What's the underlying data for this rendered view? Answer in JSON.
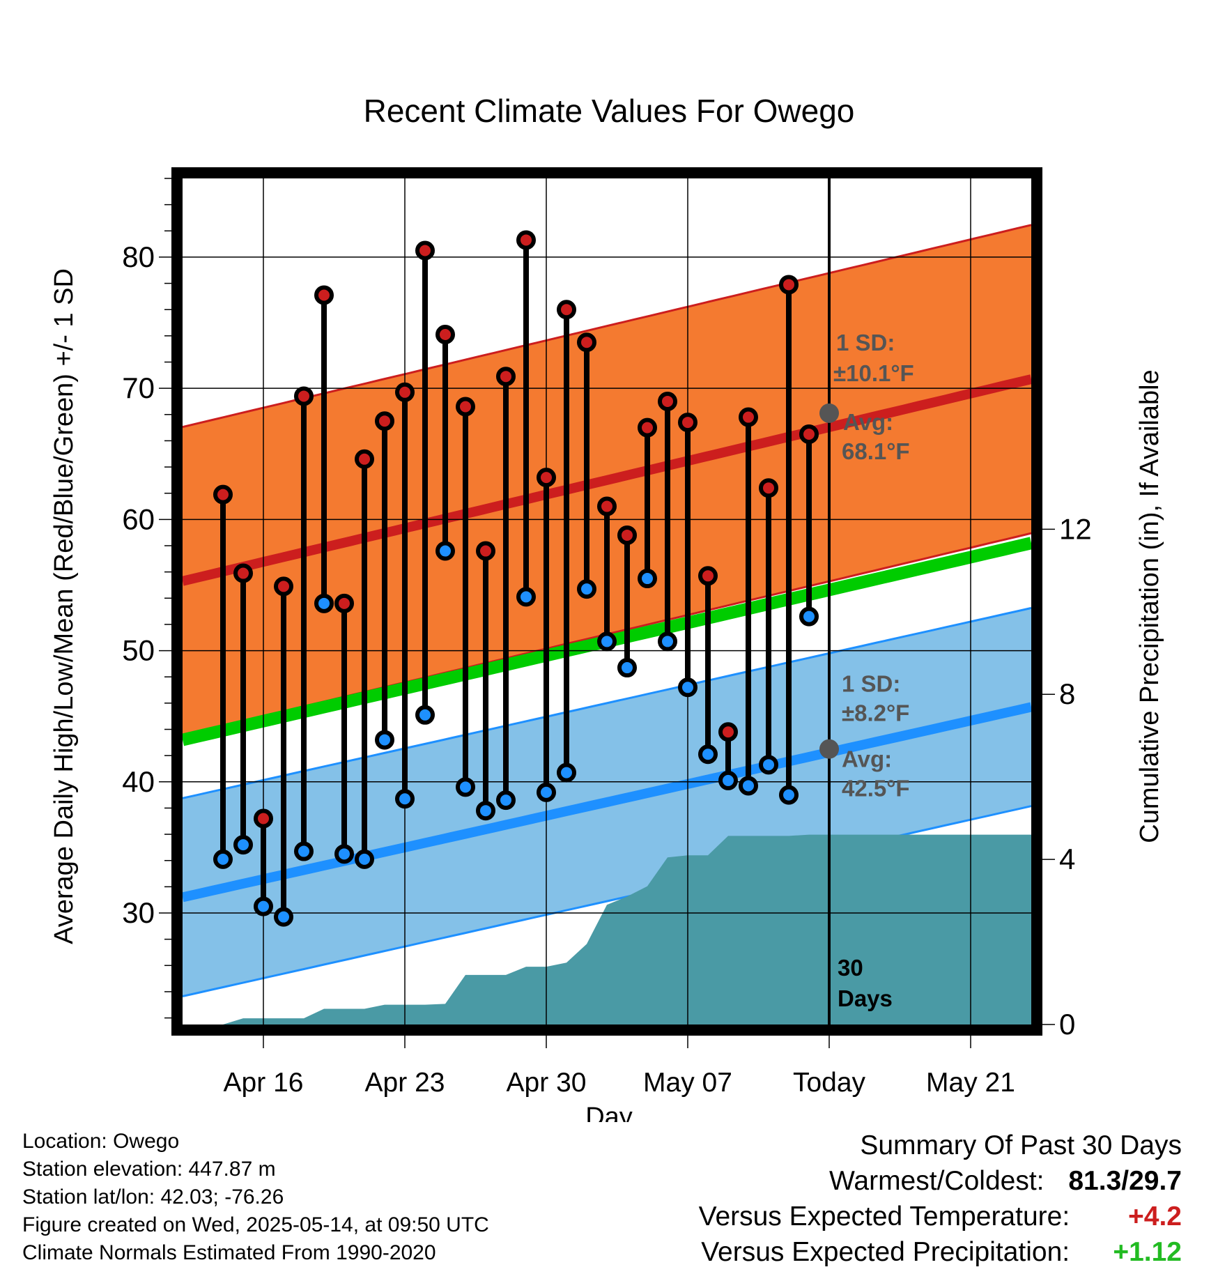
{
  "chart_data": {
    "type": "line",
    "title": "Recent Climate Values For Owego",
    "xlabel": "Day",
    "ylabel": "Average Daily High/Low/Mean (Red/Blue/Green) +/- 1 SD",
    "y2label": "Cumulative Precipitation (in), If Available",
    "xlim": [
      "2025-04-12",
      "2025-05-24"
    ],
    "ylim": [
      21.5,
      86
    ],
    "y2lim": [
      0,
      20.5
    ],
    "x_ticks": [
      {
        "date": "2025-04-16",
        "label": "Apr 16"
      },
      {
        "date": "2025-04-23",
        "label": "Apr 23"
      },
      {
        "date": "2025-04-30",
        "label": "Apr 30"
      },
      {
        "date": "2025-05-07",
        "label": "May 07"
      },
      {
        "date": "2025-05-14",
        "label": "Today"
      },
      {
        "date": "2025-05-21",
        "label": "May 21"
      }
    ],
    "y_ticks": [
      "30",
      "40",
      "50",
      "60",
      "70",
      "80"
    ],
    "y2_ticks": [
      "0",
      "4",
      "8",
      "12"
    ],
    "today": "2025-05-14",
    "today_label_line1": "30",
    "today_label_line2": "Days",
    "grid": true,
    "colors": {
      "high": "#cc1e1e",
      "low": "#1e90ff",
      "mean": "#00cc00",
      "high_band": "#f47a30",
      "low_band": "#84c1e8",
      "precip": "#4a9aa5",
      "avg_marker": "#555555"
    },
    "normals": {
      "start": "2025-04-12",
      "end": "2025-05-24",
      "high_avg": [
        55.3,
        70.7
      ],
      "high_sd": 11.75,
      "low_avg": [
        31.2,
        45.7
      ],
      "low_sd": 7.55,
      "mean_avg": [
        43.2,
        58.2
      ]
    },
    "annotations": {
      "high_sd_label1": "1 SD:",
      "high_sd_label2": "±10.1°F",
      "high_avg_label1": "Avg:",
      "high_avg_label2": "68.1°F",
      "high_avg_value": 68.1,
      "low_sd_label1": "1 SD:",
      "low_sd_label2": "±8.2°F",
      "low_avg_label1": "Avg:",
      "low_avg_label2": "42.5°F",
      "low_avg_value": 42.5
    },
    "series": [
      {
        "name": "High",
        "values": [
          [
            "2025-04-14",
            61.9
          ],
          [
            "2025-04-15",
            55.9
          ],
          [
            "2025-04-16",
            37.2
          ],
          [
            "2025-04-17",
            54.9
          ],
          [
            "2025-04-18",
            69.4
          ],
          [
            "2025-04-19",
            77.1
          ],
          [
            "2025-04-20",
            53.6
          ],
          [
            "2025-04-21",
            64.6
          ],
          [
            "2025-04-22",
            67.5
          ],
          [
            "2025-04-23",
            69.7
          ],
          [
            "2025-04-24",
            80.5
          ],
          [
            "2025-04-25",
            74.1
          ],
          [
            "2025-04-26",
            68.6
          ],
          [
            "2025-04-27",
            57.6
          ],
          [
            "2025-04-28",
            70.9
          ],
          [
            "2025-04-29",
            81.3
          ],
          [
            "2025-04-30",
            63.2
          ],
          [
            "2025-05-01",
            76.0
          ],
          [
            "2025-05-02",
            73.5
          ],
          [
            "2025-05-03",
            61.0
          ],
          [
            "2025-05-04",
            58.8
          ],
          [
            "2025-05-05",
            67.0
          ],
          [
            "2025-05-06",
            69.0
          ],
          [
            "2025-05-07",
            67.4
          ],
          [
            "2025-05-08",
            55.7
          ],
          [
            "2025-05-09",
            43.8
          ],
          [
            "2025-05-10",
            67.8
          ],
          [
            "2025-05-11",
            62.4
          ],
          [
            "2025-05-12",
            77.9
          ],
          [
            "2025-05-13",
            66.5
          ]
        ]
      },
      {
        "name": "Low",
        "values": [
          [
            "2025-04-14",
            34.1
          ],
          [
            "2025-04-15",
            35.2
          ],
          [
            "2025-04-16",
            30.5
          ],
          [
            "2025-04-17",
            29.7
          ],
          [
            "2025-04-18",
            34.7
          ],
          [
            "2025-04-19",
            53.6
          ],
          [
            "2025-04-20",
            34.5
          ],
          [
            "2025-04-21",
            34.1
          ],
          [
            "2025-04-22",
            43.2
          ],
          [
            "2025-04-23",
            38.7
          ],
          [
            "2025-04-24",
            45.1
          ],
          [
            "2025-04-25",
            57.6
          ],
          [
            "2025-04-26",
            39.6
          ],
          [
            "2025-04-27",
            37.8
          ],
          [
            "2025-04-28",
            38.6
          ],
          [
            "2025-04-29",
            54.1
          ],
          [
            "2025-04-30",
            39.2
          ],
          [
            "2025-05-01",
            40.7
          ],
          [
            "2025-05-02",
            54.7
          ],
          [
            "2025-05-03",
            50.7
          ],
          [
            "2025-05-04",
            48.7
          ],
          [
            "2025-05-05",
            55.5
          ],
          [
            "2025-05-06",
            50.7
          ],
          [
            "2025-05-07",
            47.2
          ],
          [
            "2025-05-08",
            42.1
          ],
          [
            "2025-05-09",
            40.1
          ],
          [
            "2025-05-10",
            39.7
          ],
          [
            "2025-05-11",
            41.3
          ],
          [
            "2025-05-12",
            39.0
          ],
          [
            "2025-05-13",
            52.6
          ]
        ]
      },
      {
        "name": "Cumulative Precipitation",
        "values": [
          [
            "2025-04-13",
            0.0
          ],
          [
            "2025-04-14",
            0.0
          ],
          [
            "2025-04-15",
            0.15
          ],
          [
            "2025-04-16",
            0.15
          ],
          [
            "2025-04-17",
            0.15
          ],
          [
            "2025-04-18",
            0.15
          ],
          [
            "2025-04-19",
            0.38
          ],
          [
            "2025-04-20",
            0.38
          ],
          [
            "2025-04-21",
            0.38
          ],
          [
            "2025-04-22",
            0.48
          ],
          [
            "2025-04-23",
            0.48
          ],
          [
            "2025-04-24",
            0.48
          ],
          [
            "2025-04-25",
            0.5
          ],
          [
            "2025-04-26",
            1.2
          ],
          [
            "2025-04-27",
            1.2
          ],
          [
            "2025-04-28",
            1.2
          ],
          [
            "2025-04-29",
            1.4
          ],
          [
            "2025-04-30",
            1.4
          ],
          [
            "2025-05-01",
            1.5
          ],
          [
            "2025-05-02",
            1.95
          ],
          [
            "2025-05-03",
            2.9
          ],
          [
            "2025-05-04",
            3.1
          ],
          [
            "2025-05-05",
            3.35
          ],
          [
            "2025-05-06",
            4.05
          ],
          [
            "2025-05-07",
            4.1
          ],
          [
            "2025-05-08",
            4.1
          ],
          [
            "2025-05-09",
            4.57
          ],
          [
            "2025-05-10",
            4.57
          ],
          [
            "2025-05-11",
            4.57
          ],
          [
            "2025-05-12",
            4.57
          ],
          [
            "2025-05-13",
            4.6
          ],
          [
            "2025-05-24",
            4.6
          ]
        ]
      }
    ]
  },
  "info": {
    "location": "Location: Owego",
    "elevation": "Station elevation: 447.87 m",
    "latlon": "Station lat/lon: 42.03; -76.26",
    "created": "Figure created on Wed, 2025-05-14, at 09:50 UTC",
    "normals": "Climate Normals Estimated From 1990-2020"
  },
  "summary": {
    "title": "Summary Of Past 30 Days",
    "warmest_label": "Warmest/Coldest:",
    "warmest_value": "81.3/29.7",
    "temp_label": "Versus Expected Temperature:",
    "temp_value": "+4.2",
    "temp_color": "#cc1e1e",
    "precip_label": "Versus Expected Precipitation:",
    "precip_value": "+1.12",
    "precip_color": "#22bb22"
  }
}
